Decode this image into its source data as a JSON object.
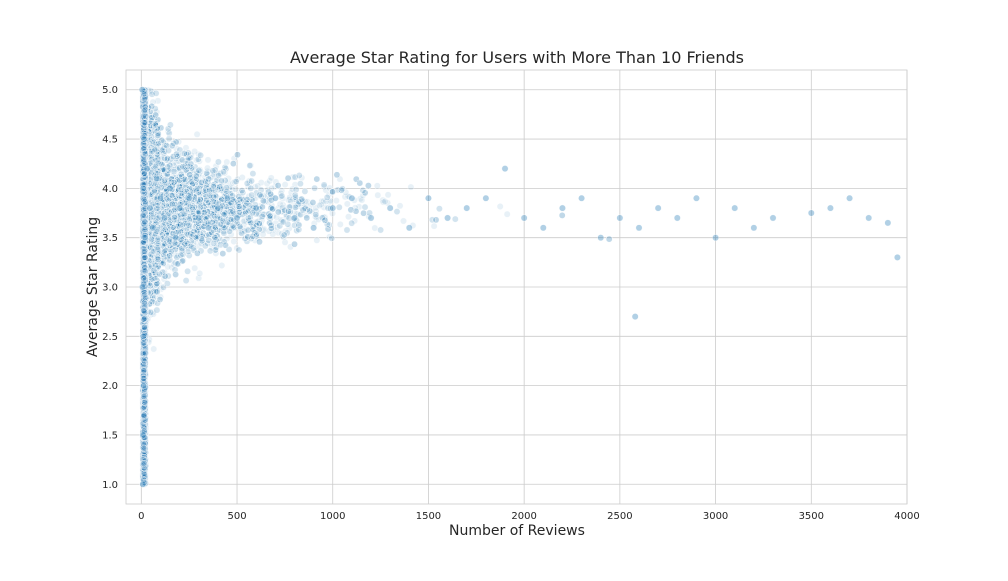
{
  "chart_data": {
    "type": "scatter",
    "title": "Average Star Rating for Users with More Than 10 Friends",
    "xlabel": "Number of Reviews",
    "ylabel": "Average Star Rating",
    "xlim": [
      -80,
      4000
    ],
    "ylim": [
      0.8,
      5.2
    ],
    "x_ticks": [
      0,
      500,
      1000,
      1500,
      2000,
      2500,
      3000,
      3500,
      4000
    ],
    "x_tick_labels": [
      "0",
      "500",
      "1000",
      "1500",
      "2000",
      "2500",
      "3000",
      "3500",
      "4000"
    ],
    "y_ticks": [
      1.0,
      1.5,
      2.0,
      2.5,
      3.0,
      3.5,
      4.0,
      4.5,
      5.0
    ],
    "y_tick_labels": [
      "1.0",
      "1.5",
      "2.0",
      "2.5",
      "3.0",
      "3.5",
      "4.0",
      "4.5",
      "5.0"
    ],
    "grid": true,
    "marker_color": "#1f77b4",
    "marker_alpha": 0.1,
    "series": [
      {
        "values_description_note": "",
        "points": [
          [
            5,
            5.0
          ],
          [
            8,
            1.0
          ],
          [
            10,
            4.0
          ],
          [
            12,
            2.0
          ],
          [
            6,
            3.0
          ],
          [
            15,
            4.5
          ],
          [
            20,
            3.5
          ],
          [
            9,
            1.5
          ],
          [
            11,
            2.5
          ],
          [
            30,
            4.2
          ],
          [
            45,
            3.8
          ],
          [
            60,
            3.6
          ],
          [
            80,
            4.1
          ],
          [
            100,
            3.9
          ],
          [
            120,
            3.7
          ],
          [
            150,
            4.0
          ],
          [
            180,
            3.5
          ],
          [
            200,
            3.8
          ],
          [
            250,
            3.9
          ],
          [
            300,
            3.7
          ],
          [
            350,
            3.6
          ],
          [
            400,
            3.8
          ],
          [
            450,
            3.9
          ],
          [
            500,
            3.7
          ],
          [
            600,
            3.8
          ],
          [
            700,
            3.9
          ],
          [
            800,
            3.7
          ],
          [
            900,
            3.6
          ],
          [
            1000,
            3.8
          ],
          [
            1100,
            3.9
          ],
          [
            1200,
            3.7
          ],
          [
            1300,
            3.8
          ],
          [
            1400,
            3.6
          ],
          [
            1500,
            3.9
          ],
          [
            1600,
            3.7
          ],
          [
            1700,
            3.8
          ],
          [
            1800,
            3.9
          ],
          [
            1900,
            4.2
          ],
          [
            2000,
            3.7
          ],
          [
            2100,
            3.6
          ],
          [
            2200,
            3.8
          ],
          [
            2300,
            3.9
          ],
          [
            2400,
            3.5
          ],
          [
            2500,
            3.7
          ],
          [
            2600,
            3.6
          ],
          [
            2700,
            3.8
          ],
          [
            2800,
            3.7
          ],
          [
            2900,
            3.9
          ],
          [
            3000,
            3.5
          ],
          [
            3100,
            3.8
          ],
          [
            3200,
            3.6
          ],
          [
            3300,
            3.7
          ],
          [
            3500,
            3.75
          ],
          [
            3600,
            3.8
          ],
          [
            3700,
            3.9
          ],
          [
            3800,
            3.7
          ],
          [
            3900,
            3.65
          ],
          [
            3950,
            3.3
          ],
          [
            2580,
            2.7
          ]
        ]
      }
    ]
  }
}
